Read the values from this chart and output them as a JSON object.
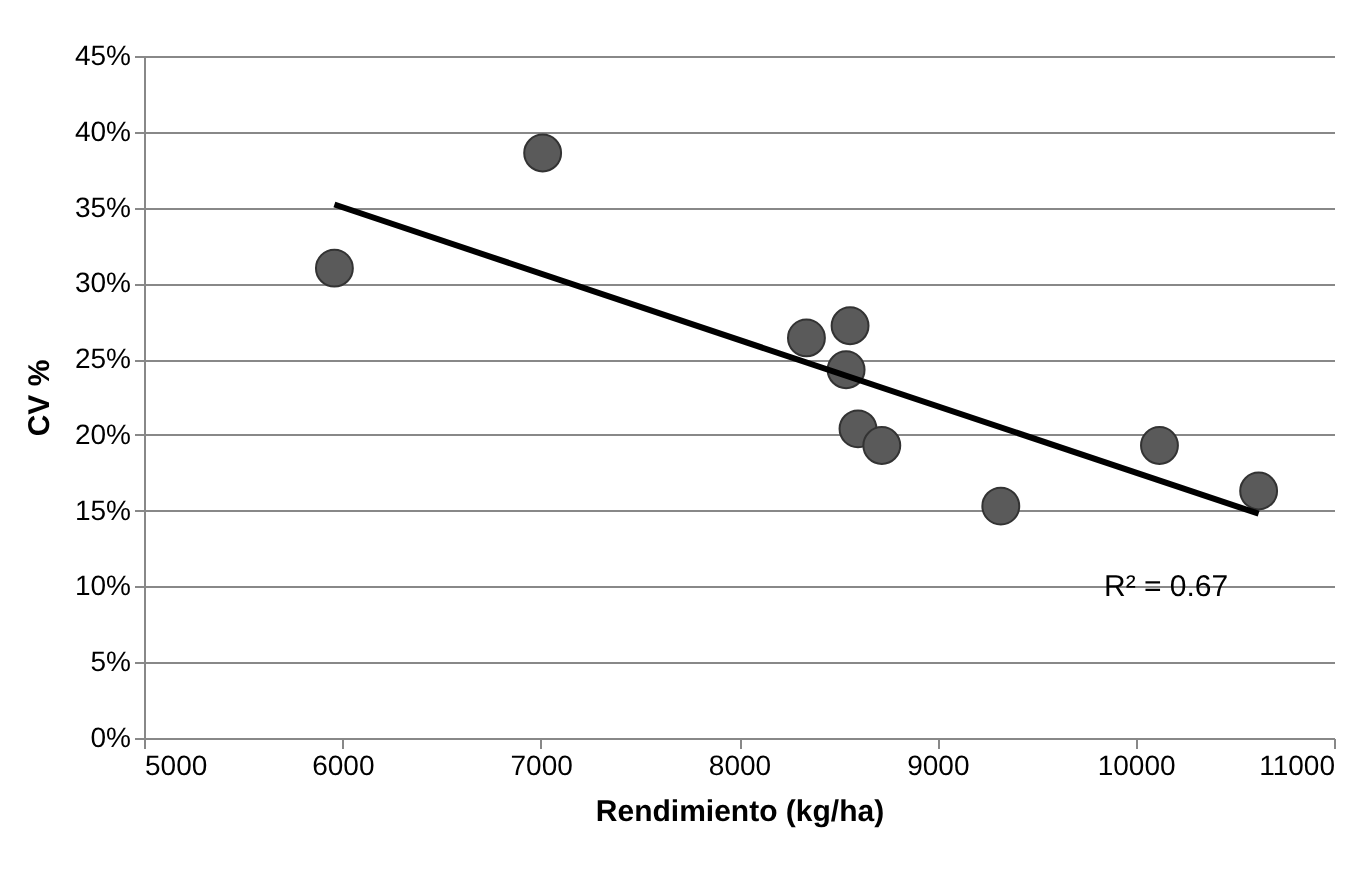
{
  "chart_data": {
    "type": "scatter",
    "xlabel": "Rendimiento (kg/ha)",
    "ylabel": "CV %",
    "xlim": [
      5000,
      11000
    ],
    "xticks": [
      5000,
      6000,
      7000,
      8000,
      9000,
      10000,
      11000
    ],
    "ylim": [
      0,
      45
    ],
    "yticks": [
      {
        "value": 0,
        "label": "0%"
      },
      {
        "value": 5,
        "label": "5%"
      },
      {
        "value": 10,
        "label": "10%"
      },
      {
        "value": 15,
        "label": "15%"
      },
      {
        "value": 20,
        "label": "20%"
      },
      {
        "value": 25,
        "label": "25%"
      },
      {
        "value": 30,
        "label": "30%"
      },
      {
        "value": 35,
        "label": "35%"
      },
      {
        "value": 40,
        "label": "40%"
      },
      {
        "value": 45,
        "label": "45%"
      }
    ],
    "grid": "y",
    "annotations": [
      "R² = 0.67"
    ],
    "series": [
      {
        "marker": "circle",
        "color": "#5a5a5a",
        "x": [
          5960,
          7010,
          8340,
          8560,
          8540,
          8600,
          8720,
          9320,
          10120,
          10620
        ],
        "values": [
          31.0,
          38.6,
          26.4,
          27.2,
          24.3,
          20.4,
          19.3,
          15.3,
          19.3,
          16.3
        ]
      },
      {
        "type": "line",
        "marker": "none",
        "color": "#000000",
        "x": [
          5960,
          10620
        ],
        "values": [
          35.2,
          14.8
        ]
      }
    ]
  }
}
